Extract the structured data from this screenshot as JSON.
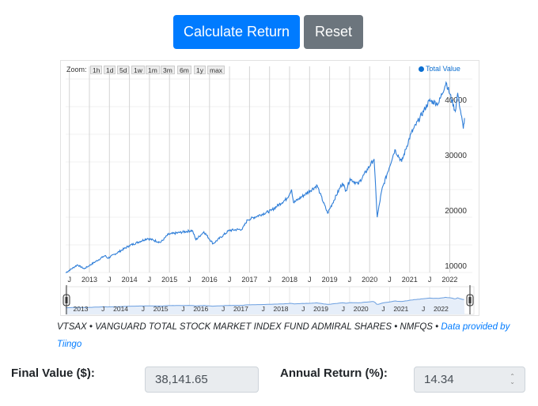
{
  "buttons": {
    "calculate": "Calculate Return",
    "reset": "Reset"
  },
  "chart": {
    "zoom_label": "Zoom:",
    "zoom_buttons": [
      "1h",
      "1d",
      "5d",
      "1w",
      "1m",
      "3m",
      "6m",
      "1y",
      "max"
    ],
    "legend": "Total Value",
    "line_color": "#2f7ed8"
  },
  "chart_data": {
    "type": "line",
    "title": "",
    "xlabel": "",
    "ylabel": "",
    "ylim": [
      9000,
      45000
    ],
    "xlim": [
      2012.4,
      2022.5
    ],
    "y_ticks": [
      "10000",
      "20000",
      "30000",
      "40000"
    ],
    "x_ticks": [
      "J",
      "2013",
      "J",
      "2014",
      "J",
      "2015",
      "J",
      "2016",
      "J",
      "2017",
      "J",
      "2018",
      "J",
      "2019",
      "J",
      "2020",
      "J",
      "2021",
      "J",
      "2022"
    ],
    "navigator_ticks": [
      "2013",
      "J",
      "2014",
      "J",
      "2015",
      "J",
      "2016",
      "J",
      "2017",
      "J",
      "2018",
      "J",
      "2019",
      "J",
      "2020",
      "J",
      "2021",
      "J",
      "2022"
    ],
    "legend": "top-right",
    "series": [
      {
        "name": "Total Value",
        "points": [
          [
            2012.41,
            9950
          ],
          [
            2012.7,
            11390
          ],
          [
            2012.87,
            10670
          ],
          [
            2013.39,
            13060
          ],
          [
            2013.46,
            12580
          ],
          [
            2013.99,
            14830
          ],
          [
            2014.45,
            16170
          ],
          [
            2014.78,
            15450
          ],
          [
            2014.97,
            16890
          ],
          [
            2015.57,
            17610
          ],
          [
            2015.66,
            15930
          ],
          [
            2015.86,
            17370
          ],
          [
            2016.09,
            15220
          ],
          [
            2016.49,
            17610
          ],
          [
            2016.82,
            17850
          ],
          [
            2016.95,
            19520
          ],
          [
            2017.54,
            21200
          ],
          [
            2017.93,
            23350
          ],
          [
            2018.05,
            25020
          ],
          [
            2018.1,
            22630
          ],
          [
            2018.69,
            25740
          ],
          [
            2018.76,
            24310
          ],
          [
            2018.95,
            20720
          ],
          [
            2019.32,
            26220
          ],
          [
            2019.41,
            24780
          ],
          [
            2019.51,
            26940
          ],
          [
            2019.71,
            25980
          ],
          [
            2020.11,
            30530
          ],
          [
            2020.19,
            20000
          ],
          [
            2020.3,
            24780
          ],
          [
            2020.63,
            32200
          ],
          [
            2020.8,
            30050
          ],
          [
            2021.03,
            35070
          ],
          [
            2021.49,
            41050
          ],
          [
            2021.72,
            40570
          ],
          [
            2021.91,
            44400
          ],
          [
            2022.14,
            39140
          ],
          [
            2022.2,
            42490
          ],
          [
            2022.34,
            36030
          ],
          [
            2022.37,
            37940
          ]
        ]
      }
    ]
  },
  "caption": {
    "text": "VTSAX • VANGUARD TOTAL STOCK MARKET INDEX FUND ADMIRAL SHARES • NMFQS • ",
    "link": "Data provided by Tiingo"
  },
  "results": {
    "final_label": "Final Value ($):",
    "final_value": "38,141.65",
    "annual_label": "Annual Return (%):",
    "annual_value": "14.34"
  }
}
